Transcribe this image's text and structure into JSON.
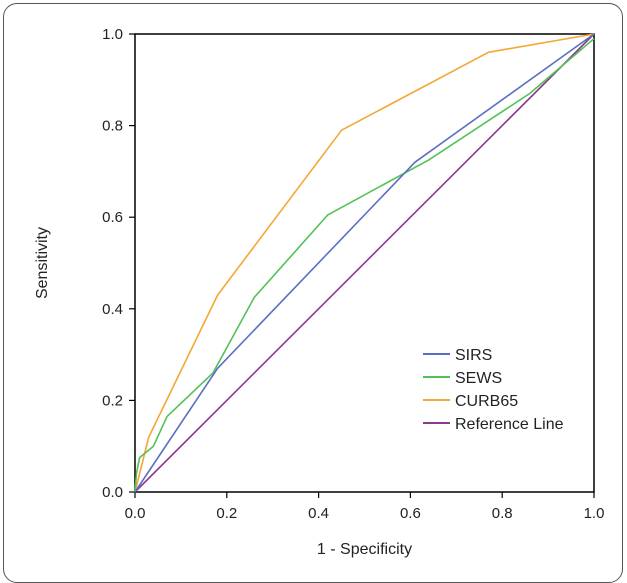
{
  "chart_data": {
    "type": "line",
    "title": "",
    "xlabel": "1 - Specificity",
    "ylabel": "Sensitivity",
    "xlim": [
      0,
      1
    ],
    "ylim": [
      0,
      1
    ],
    "x_ticks": [
      "0.0",
      "0.2",
      "0.4",
      "0.6",
      "0.8",
      "1.0"
    ],
    "y_ticks": [
      "0.0",
      "0.2",
      "0.4",
      "0.6",
      "0.8",
      "1.0"
    ],
    "grid": false,
    "legend_position": "bottom-right",
    "series": [
      {
        "name": "SIRS",
        "color": "#5b6fc2",
        "x": [
          0,
          0.18,
          0.61,
          1.0
        ],
        "y": [
          0,
          0.27,
          0.72,
          1.0
        ]
      },
      {
        "name": "SEWS",
        "color": "#52c255",
        "x": [
          0,
          0.003,
          0.01,
          0.04,
          0.07,
          0.17,
          0.26,
          0.42,
          0.64,
          0.86,
          1.0
        ],
        "y": [
          0,
          0.04,
          0.075,
          0.1,
          0.165,
          0.26,
          0.425,
          0.605,
          0.725,
          0.87,
          0.99
        ]
      },
      {
        "name": "CURB65",
        "color": "#f5a634",
        "x": [
          0,
          0.03,
          0.18,
          0.45,
          0.77,
          1.0
        ],
        "y": [
          0,
          0.12,
          0.43,
          0.79,
          0.96,
          1.0
        ]
      },
      {
        "name": "Reference Line",
        "color": "#8b3a8e",
        "x": [
          0,
          1.0
        ],
        "y": [
          0,
          1.0
        ]
      }
    ]
  }
}
